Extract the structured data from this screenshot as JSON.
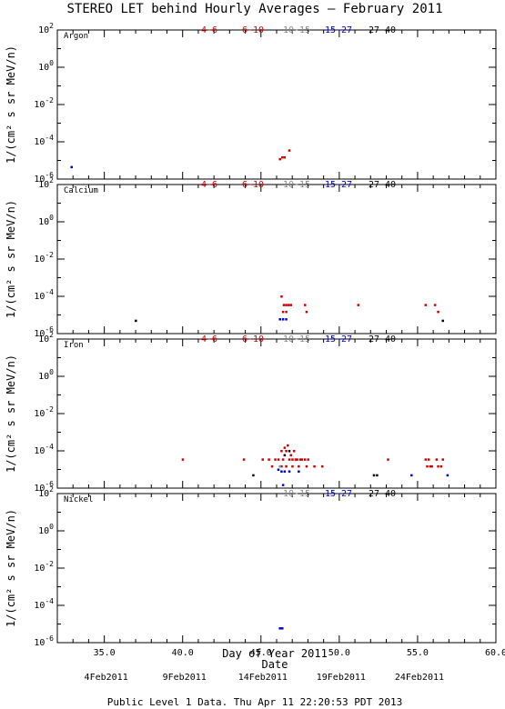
{
  "chart_data": {
    "type": "scatter",
    "title": "STEREO LET behind Hourly Averages – February 2011",
    "xlabel": "Day of Year 2011",
    "xlabel2": "Date",
    "ylabel": "1/(cm² s sr MeV/n)",
    "xlim": [
      32,
      60
    ],
    "x_ticks": [
      "35.0",
      "40.0",
      "45.0",
      "50.0",
      "55.0",
      "60.0"
    ],
    "x_tick_values": [
      35,
      40,
      45,
      50,
      55,
      60
    ],
    "ylim_log10": [
      -6,
      2
    ],
    "y_ticks": [
      "10^-6",
      "10^-4",
      "10^-2",
      "10^0",
      "10^2"
    ],
    "date_labels": [
      {
        "x": 35,
        "label": "4Feb2011"
      },
      {
        "x": 40,
        "label": "9Feb2011"
      },
      {
        "x": 45,
        "label": "14Feb2011"
      },
      {
        "x": 50,
        "label": "19Feb2011"
      },
      {
        "x": 55,
        "label": "24Feb2011"
      }
    ],
    "footer": "Public Level 1 Data. Thu Apr 11 22:20:53 PDT 2013",
    "series_colors": {
      "4-6": "#cc0000",
      "6-10": "#cc0000",
      "10-15": "#888888",
      "15-27": "#0000cc",
      "27-40": "#000000"
    },
    "panels": [
      {
        "name": "Argon",
        "legend": [
          "4-6",
          "6-10",
          "10-15",
          "15-27",
          "27-40"
        ],
        "points": [
          {
            "s": "15-27",
            "x": 32.9,
            "y": 4.5e-06
          },
          {
            "s": "4-6",
            "x": 46.2,
            "y": 1.2e-05
          },
          {
            "s": "4-6",
            "x": 46.35,
            "y": 1.5e-05
          },
          {
            "s": "4-6",
            "x": 46.5,
            "y": 1.5e-05
          },
          {
            "s": "6-10",
            "x": 46.8,
            "y": 3.5e-05
          }
        ]
      },
      {
        "name": "Calcium",
        "legend": [
          "4-6",
          "6-10",
          "10-15",
          "15-27",
          "27-40"
        ],
        "points": [
          {
            "s": "27-40",
            "x": 37.0,
            "y": 5e-06
          },
          {
            "s": "4-6",
            "x": 46.3,
            "y": 0.0001
          },
          {
            "s": "4-6",
            "x": 46.45,
            "y": 3.5e-05
          },
          {
            "s": "4-6",
            "x": 46.6,
            "y": 3.5e-05
          },
          {
            "s": "6-10",
            "x": 46.75,
            "y": 3.5e-05
          },
          {
            "s": "4-6",
            "x": 46.9,
            "y": 3.5e-05
          },
          {
            "s": "6-10",
            "x": 46.4,
            "y": 1.5e-05
          },
          {
            "s": "4-6",
            "x": 46.6,
            "y": 1.5e-05
          },
          {
            "s": "15-27",
            "x": 46.2,
            "y": 6e-06
          },
          {
            "s": "15-27",
            "x": 46.4,
            "y": 6e-06
          },
          {
            "s": "15-27",
            "x": 46.6,
            "y": 6e-06
          },
          {
            "s": "4-6",
            "x": 47.8,
            "y": 3.5e-05
          },
          {
            "s": "6-10",
            "x": 47.9,
            "y": 1.5e-05
          },
          {
            "s": "4-6",
            "x": 51.2,
            "y": 3.5e-05
          },
          {
            "s": "4-6",
            "x": 55.5,
            "y": 3.5e-05
          },
          {
            "s": "4-6",
            "x": 56.1,
            "y": 3.5e-05
          },
          {
            "s": "6-10",
            "x": 56.3,
            "y": 1.5e-05
          },
          {
            "s": "27-40",
            "x": 56.6,
            "y": 5e-06
          }
        ]
      },
      {
        "name": "Iron",
        "legend": [
          "4-6",
          "6-10",
          "10-15",
          "15-27",
          "27-40"
        ],
        "points": [
          {
            "s": "4-6",
            "x": 40.0,
            "y": 3.5e-05
          },
          {
            "s": "4-6",
            "x": 43.9,
            "y": 3.5e-05
          },
          {
            "s": "27-40",
            "x": 44.5,
            "y": 5e-06
          },
          {
            "s": "4-6",
            "x": 45.1,
            "y": 3.5e-05
          },
          {
            "s": "6-10",
            "x": 45.5,
            "y": 3.5e-05
          },
          {
            "s": "4-6",
            "x": 45.7,
            "y": 1.5e-05
          },
          {
            "s": "4-6",
            "x": 45.9,
            "y": 3.5e-05
          },
          {
            "s": "6-10",
            "x": 46.1,
            "y": 3.5e-05
          },
          {
            "s": "4-6",
            "x": 46.3,
            "y": 0.0001
          },
          {
            "s": "6-10",
            "x": 46.4,
            "y": 3.5e-05
          },
          {
            "s": "4-6",
            "x": 46.5,
            "y": 0.00015
          },
          {
            "s": "27-40",
            "x": 46.5,
            "y": 6e-05
          },
          {
            "s": "6-10",
            "x": 46.6,
            "y": 0.0001
          },
          {
            "s": "4-6",
            "x": 46.7,
            "y": 0.0002
          },
          {
            "s": "27-40",
            "x": 46.8,
            "y": 0.0001
          },
          {
            "s": "6-10",
            "x": 46.8,
            "y": 3.5e-05
          },
          {
            "s": "4-6",
            "x": 46.9,
            "y": 6e-05
          },
          {
            "s": "6-10",
            "x": 47.0,
            "y": 3.5e-05
          },
          {
            "s": "4-6",
            "x": 47.1,
            "y": 0.0001
          },
          {
            "s": "6-10",
            "x": 47.2,
            "y": 3.5e-05
          },
          {
            "s": "4-6",
            "x": 47.3,
            "y": 3.5e-05
          },
          {
            "s": "6-10",
            "x": 47.5,
            "y": 3.5e-05
          },
          {
            "s": "4-6",
            "x": 47.6,
            "y": 3.5e-05
          },
          {
            "s": "6-10",
            "x": 47.8,
            "y": 3.5e-05
          },
          {
            "s": "4-6",
            "x": 48.0,
            "y": 3.5e-05
          },
          {
            "s": "6-10",
            "x": 46.3,
            "y": 1.5e-05
          },
          {
            "s": "4-6",
            "x": 46.6,
            "y": 1.5e-05
          },
          {
            "s": "6-10",
            "x": 47.0,
            "y": 1.5e-05
          },
          {
            "s": "4-6",
            "x": 47.4,
            "y": 1.5e-05
          },
          {
            "s": "6-10",
            "x": 47.9,
            "y": 1.5e-05
          },
          {
            "s": "4-6",
            "x": 48.4,
            "y": 1.5e-05
          },
          {
            "s": "6-10",
            "x": 48.9,
            "y": 1.5e-05
          },
          {
            "s": "15-27",
            "x": 46.1,
            "y": 1e-05
          },
          {
            "s": "15-27",
            "x": 46.3,
            "y": 8e-06
          },
          {
            "s": "15-27",
            "x": 46.5,
            "y": 8e-06
          },
          {
            "s": "15-27",
            "x": 46.8,
            "y": 8e-06
          },
          {
            "s": "15-27",
            "x": 47.4,
            "y": 8e-06
          },
          {
            "s": "15-27",
            "x": 46.4,
            "y": 1.5e-06
          },
          {
            "s": "10-15",
            "x": 46.2,
            "y": 1.5e-05
          },
          {
            "s": "27-40",
            "x": 52.2,
            "y": 5e-06
          },
          {
            "s": "27-40",
            "x": 52.4,
            "y": 5e-06
          },
          {
            "s": "4-6",
            "x": 53.1,
            "y": 3.5e-05
          },
          {
            "s": "15-27",
            "x": 54.6,
            "y": 5e-06
          },
          {
            "s": "4-6",
            "x": 55.5,
            "y": 3.5e-05
          },
          {
            "s": "6-10",
            "x": 55.6,
            "y": 1.5e-05
          },
          {
            "s": "4-6",
            "x": 55.7,
            "y": 3.5e-05
          },
          {
            "s": "6-10",
            "x": 55.8,
            "y": 1.5e-05
          },
          {
            "s": "4-6",
            "x": 55.9,
            "y": 1.5e-05
          },
          {
            "s": "4-6",
            "x": 56.2,
            "y": 3.5e-05
          },
          {
            "s": "6-10",
            "x": 56.3,
            "y": 1.5e-05
          },
          {
            "s": "4-6",
            "x": 56.5,
            "y": 1.5e-05
          },
          {
            "s": "4-6",
            "x": 56.6,
            "y": 3.5e-05
          },
          {
            "s": "15-27",
            "x": 56.9,
            "y": 5e-06
          }
        ]
      },
      {
        "name": "Nickel",
        "legend": [
          "10-15",
          "15-27",
          "27-40"
        ],
        "points": [
          {
            "s": "15-27",
            "x": 46.2,
            "y": 6e-06
          },
          {
            "s": "15-27",
            "x": 46.35,
            "y": 6e-06
          }
        ]
      }
    ]
  }
}
